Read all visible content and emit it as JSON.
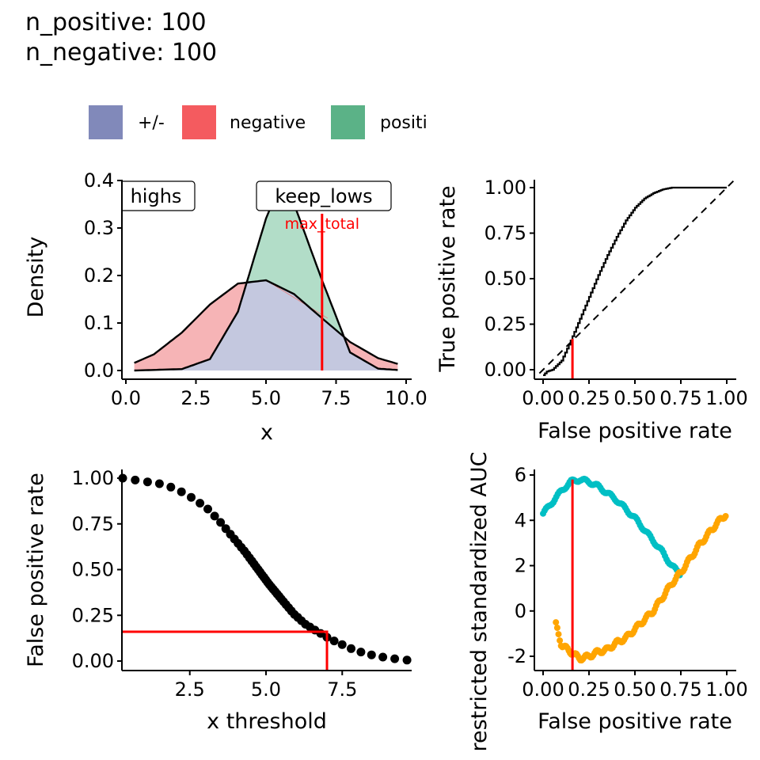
{
  "header": {
    "line1": "n_positive: 100",
    "line2": "n_negative: 100"
  },
  "legend": {
    "items": [
      {
        "label": "+/-",
        "color": "#8189BA"
      },
      {
        "label": "negative",
        "color": "#F45B5F"
      },
      {
        "label": "positive",
        "color": "#5BB287"
      }
    ]
  },
  "colors": {
    "negative_fill": "#F6B4B6",
    "positive_fill": "#B2DDC8",
    "overlap_fill": "#C4C8DF",
    "cutoff": "#FF0000",
    "auc_upper": "#00BFC4",
    "auc_lower": "#FFA500",
    "points": "#000000"
  },
  "chart_data": [
    {
      "id": "density",
      "type": "area",
      "xlabel": "x",
      "ylabel": "Density",
      "xlim": [
        0.0,
        10.0
      ],
      "ylim": [
        0.0,
        0.4
      ],
      "xticks": [
        "0.0",
        "2.5",
        "5.0",
        "7.5",
        "10.0"
      ],
      "yticks": [
        "0.0",
        "0.1",
        "0.2",
        "0.3",
        "0.4"
      ],
      "series": [
        {
          "name": "negative",
          "x": [
            0.3,
            1,
            2,
            3,
            4,
            5,
            6,
            7,
            8,
            9,
            9.7
          ],
          "values": [
            0.016,
            0.034,
            0.08,
            0.139,
            0.183,
            0.19,
            0.161,
            0.11,
            0.06,
            0.026,
            0.014
          ]
        },
        {
          "name": "positive",
          "x": [
            0.3,
            2,
            3,
            4,
            5,
            5.5,
            6,
            7,
            8,
            9,
            9.7
          ],
          "values": [
            0.0,
            0.003,
            0.024,
            0.124,
            0.32,
            0.39,
            0.351,
            0.19,
            0.038,
            0.004,
            0.001
          ]
        }
      ],
      "annotations": [
        {
          "text": "highs",
          "x": 1.6,
          "y": 0.37
        },
        {
          "text": "keep_lows",
          "x": 5.7,
          "y": 0.37
        },
        {
          "text": "max_total",
          "x": 7.0,
          "y": 0.305
        }
      ],
      "cutoff_x": 7.0
    },
    {
      "id": "roc",
      "type": "line",
      "xlabel": "False positive rate",
      "ylabel": "True positive rate",
      "xlim": [
        0.0,
        1.0
      ],
      "ylim": [
        0.0,
        1.0
      ],
      "xticks": [
        "0.00",
        "0.25",
        "0.50",
        "0.75",
        "1.00"
      ],
      "yticks": [
        "0.00",
        "0.25",
        "0.50",
        "0.75",
        "1.00"
      ],
      "x": [
        0.0,
        0.02,
        0.05,
        0.1,
        0.15,
        0.2,
        0.25,
        0.3,
        0.35,
        0.4,
        0.45,
        0.5,
        0.55,
        0.6,
        0.65,
        0.7,
        0.75,
        0.8,
        0.9,
        1.0
      ],
      "values": [
        -0.03,
        -0.01,
        0.0,
        0.05,
        0.16,
        0.28,
        0.4,
        0.52,
        0.63,
        0.73,
        0.82,
        0.89,
        0.94,
        0.97,
        0.99,
        1.0,
        1.0,
        1.0,
        1.0,
        1.0
      ],
      "diagonal": true,
      "cutoff": {
        "x": 0.16,
        "y": 0.17
      }
    },
    {
      "id": "fpr_threshold",
      "type": "scatter",
      "xlabel": "x threshold",
      "ylabel": "False positive rate",
      "xlim": [
        0.3,
        9.7
      ],
      "ylim": [
        0.0,
        1.0
      ],
      "xticks": [
        "2.5",
        "5.0",
        "7.5"
      ],
      "yticks": [
        "0.00",
        "0.25",
        "0.50",
        "0.75",
        "1.00"
      ],
      "x": [
        0.3,
        0.7,
        1.1,
        1.5,
        1.9,
        2.3,
        2.7,
        3.1,
        3.5,
        3.9,
        4.3,
        4.7,
        5.1,
        5.5,
        5.9,
        6.3,
        6.7,
        7.1,
        7.5,
        7.9,
        8.3,
        8.7,
        9.1,
        9.6
      ],
      "values": [
        1.0,
        0.99,
        0.98,
        0.97,
        0.95,
        0.92,
        0.88,
        0.83,
        0.76,
        0.68,
        0.6,
        0.51,
        0.42,
        0.34,
        0.26,
        0.2,
        0.16,
        0.12,
        0.09,
        0.06,
        0.04,
        0.025,
        0.015,
        0.005
      ],
      "cutoff": {
        "x": 7.0,
        "y": 0.16
      }
    },
    {
      "id": "restricted_auc",
      "type": "scatter",
      "xlabel": "False positive rate",
      "ylabel": "restricted standardized AUC",
      "xlim": [
        0.0,
        1.0
      ],
      "ylim": [
        -2.0,
        6.0
      ],
      "xticks": [
        "0.00",
        "0.25",
        "0.50",
        "0.75",
        "1.00"
      ],
      "yticks": [
        "-2",
        "0",
        "2",
        "4",
        "6"
      ],
      "series": [
        {
          "x": [
            0.0,
            0.05,
            0.1,
            0.15,
            0.2,
            0.25,
            0.3,
            0.35,
            0.4,
            0.45,
            0.5,
            0.55,
            0.6,
            0.65,
            0.7,
            0.75
          ],
          "values": [
            4.3,
            4.8,
            5.3,
            5.7,
            5.8,
            5.7,
            5.5,
            5.2,
            4.9,
            4.5,
            4.1,
            3.6,
            3.1,
            2.6,
            2.0,
            1.6
          ]
        },
        {
          "x": [
            0.07,
            0.1,
            0.15,
            0.2,
            0.25,
            0.3,
            0.35,
            0.4,
            0.45,
            0.5,
            0.55,
            0.6,
            0.65,
            0.7,
            0.75,
            0.8,
            0.85,
            0.9,
            0.95,
            1.0
          ],
          "values": [
            -0.6,
            -1.5,
            -1.8,
            -2.1,
            -2.0,
            -1.8,
            -1.7,
            -1.4,
            -1.2,
            -0.8,
            -0.4,
            0.0,
            0.6,
            1.2,
            1.7,
            2.3,
            2.9,
            3.4,
            3.9,
            4.3
          ]
        }
      ],
      "cutoff_x": 0.16
    }
  ]
}
